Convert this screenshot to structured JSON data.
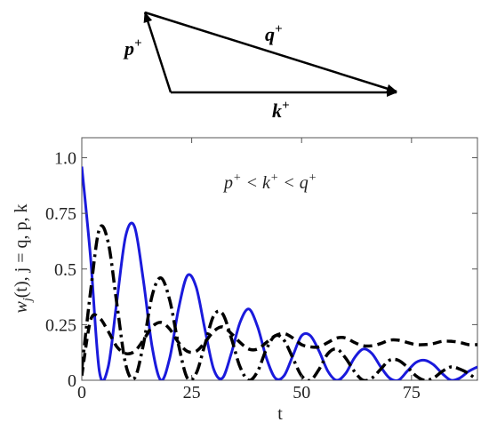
{
  "diagram": {
    "p_label": [
      "p",
      "+"
    ],
    "q_label": [
      "q",
      "+"
    ],
    "k_label": [
      "k",
      "+"
    ]
  },
  "chart_data": {
    "type": "line",
    "annotation": [
      "p",
      "+",
      " < ",
      "k",
      "+",
      " < ",
      "q",
      "+"
    ],
    "xlabel": "t",
    "ylabel": [
      "w",
      "j",
      "(t),   j = q, p, k"
    ],
    "x": [
      0,
      2,
      4,
      6,
      8,
      10,
      12,
      14,
      16,
      18,
      20,
      22,
      24,
      26,
      28,
      30,
      32,
      34,
      36,
      38,
      40,
      42,
      44,
      46,
      48,
      50,
      52,
      54,
      56,
      58,
      60,
      62,
      64,
      66,
      68,
      70,
      72,
      74,
      76,
      78,
      80,
      82,
      84,
      86,
      88,
      90
    ],
    "series": [
      {
        "color": "#1a1adc",
        "style": "solid",
        "values": [
          0.96,
          0.55,
          0.04,
          0.06,
          0.36,
          0.65,
          0.69,
          0.45,
          0.15,
          0.0,
          0.1,
          0.32,
          0.47,
          0.42,
          0.23,
          0.05,
          0.01,
          0.12,
          0.26,
          0.32,
          0.24,
          0.1,
          0.01,
          0.02,
          0.11,
          0.2,
          0.2,
          0.13,
          0.04,
          0.0,
          0.03,
          0.1,
          0.14,
          0.12,
          0.06,
          0.01,
          0.0,
          0.04,
          0.08,
          0.09,
          0.07,
          0.03,
          0.0,
          0.01,
          0.04,
          0.06
        ]
      },
      {
        "color": "#000000",
        "style": "dashdot",
        "values": [
          0.05,
          0.4,
          0.68,
          0.62,
          0.34,
          0.07,
          0.01,
          0.16,
          0.38,
          0.46,
          0.36,
          0.16,
          0.01,
          0.03,
          0.16,
          0.29,
          0.3,
          0.19,
          0.06,
          0.0,
          0.04,
          0.14,
          0.2,
          0.18,
          0.1,
          0.02,
          0.0,
          0.05,
          0.12,
          0.14,
          0.1,
          0.04,
          0.0,
          0.01,
          0.05,
          0.09,
          0.09,
          0.06,
          0.02,
          0.0,
          0.01,
          0.04,
          0.06,
          0.05,
          0.03,
          0.0
        ]
      },
      {
        "color": "#000000",
        "style": "dashed",
        "values": [
          0.02,
          0.27,
          0.28,
          0.22,
          0.15,
          0.12,
          0.13,
          0.18,
          0.24,
          0.26,
          0.23,
          0.17,
          0.13,
          0.13,
          0.17,
          0.22,
          0.24,
          0.21,
          0.17,
          0.14,
          0.14,
          0.17,
          0.2,
          0.21,
          0.19,
          0.16,
          0.15,
          0.15,
          0.17,
          0.19,
          0.19,
          0.17,
          0.155,
          0.155,
          0.165,
          0.18,
          0.18,
          0.17,
          0.16,
          0.16,
          0.165,
          0.175,
          0.175,
          0.17,
          0.16,
          0.16
        ]
      }
    ],
    "xlim": [
      0,
      90
    ],
    "xticks": [
      0,
      25,
      50,
      75
    ],
    "ylim": [
      0,
      1.09
    ],
    "yticks": [
      0,
      0.25,
      0.5,
      0.75,
      {
        "value": 1,
        "label": "1.0"
      }
    ]
  }
}
